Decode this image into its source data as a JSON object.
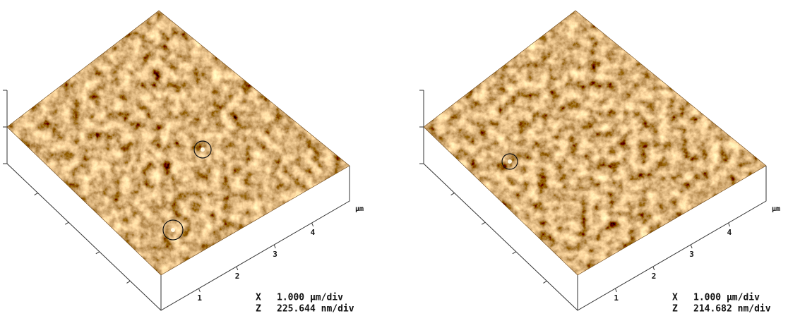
{
  "panels": [
    {
      "x_axis_ticks": [
        "1",
        "2",
        "3",
        "4"
      ],
      "unit": "μm",
      "x_label": "X",
      "x_scale": "1.000 μm/div",
      "z_label": "Z",
      "z_scale": "225.644 nm/div"
    },
    {
      "x_axis_ticks": [
        "1",
        "2",
        "3",
        "4"
      ],
      "unit": "μm",
      "x_label": "X",
      "x_scale": "1.000 μm/div",
      "z_label": "Z",
      "z_scale": "214.682 nm/div"
    }
  ]
}
